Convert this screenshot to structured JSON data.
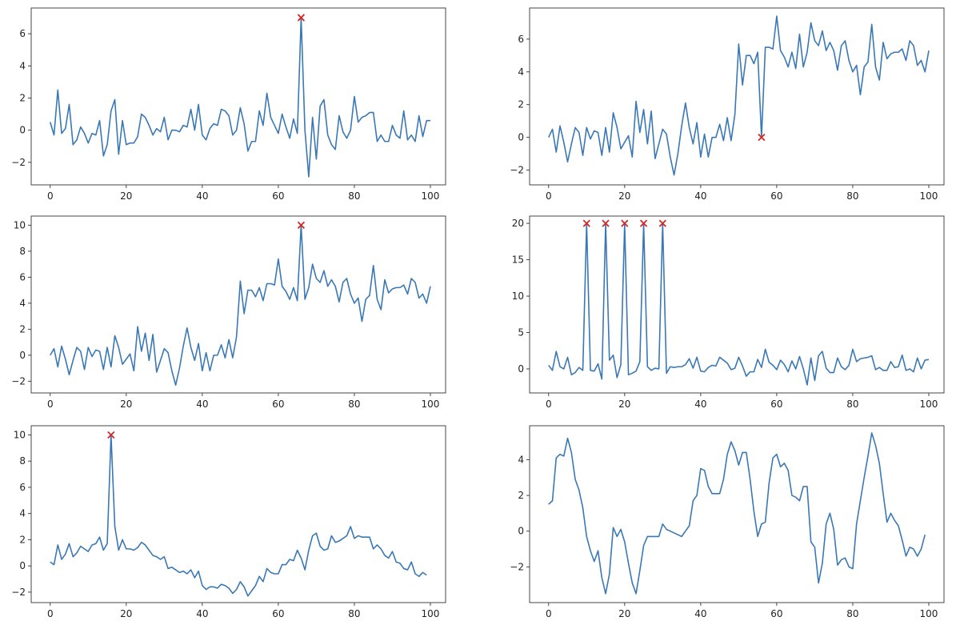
{
  "figure": {
    "line_color": "#3a78b5",
    "marker_color": "#d62728",
    "marker_symbol": "x",
    "layout": "3x2 grid"
  },
  "chart_data": [
    {
      "type": "line",
      "xlim": [
        -5,
        104
      ],
      "ylim": [
        -3.4,
        7.6
      ],
      "xticks": [
        0,
        20,
        40,
        60,
        80,
        100
      ],
      "yticks": [
        -2,
        0,
        2,
        4,
        6
      ],
      "series": [
        {
          "y": [
            0.5,
            -0.3,
            2.5,
            -0.2,
            0.1,
            1.6,
            -0.9,
            -0.6,
            0.2,
            -0.2,
            -0.8,
            -0.2,
            -0.3,
            0.6,
            -1.6,
            -0.9,
            1.2,
            1.9,
            -1.5,
            0.6,
            -0.9,
            -0.8,
            -0.8,
            -0.4,
            1.0,
            0.8,
            0.3,
            -0.3,
            0.1,
            -0.1,
            0.8,
            -0.6,
            0.0,
            0.0,
            -0.1,
            0.3,
            0.2,
            1.3,
            0.0,
            1.6,
            -0.3,
            -0.6,
            0.1,
            0.4,
            0.3,
            1.3,
            1.2,
            0.9,
            -0.3,
            0.0,
            1.4,
            0.4,
            -1.3,
            -0.7,
            -0.7,
            1.2,
            0.3,
            2.3,
            0.8,
            0.3,
            -0.2,
            1.0,
            0.2,
            -0.5,
            0.7,
            -0.2,
            7.0,
            0.0,
            -2.9,
            0.8,
            -1.8,
            1.5,
            1.9,
            -0.3,
            -0.9,
            -1.2,
            0.9,
            -0.1,
            -0.5,
            0.0,
            2.1,
            0.5,
            0.8,
            0.9,
            1.1,
            1.1,
            -0.7,
            -0.3,
            -0.7,
            -0.7,
            0.3,
            -0.3,
            -0.5,
            1.2,
            -0.6,
            -0.3,
            -0.7,
            0.9,
            -0.4,
            0.6,
            0.6
          ]
        }
      ],
      "markers": [
        {
          "x": 66,
          "y": 7.0
        }
      ]
    },
    {
      "type": "line",
      "xlim": [
        -5,
        104
      ],
      "ylim": [
        -2.9,
        7.9
      ],
      "xticks": [
        0,
        20,
        40,
        60,
        80,
        100
      ],
      "yticks": [
        -2,
        0,
        2,
        4,
        6
      ],
      "series": [
        {
          "y": [
            0.0,
            0.5,
            -0.9,
            0.7,
            -0.3,
            -1.5,
            -0.4,
            0.6,
            0.3,
            -1.1,
            0.6,
            -0.1,
            0.4,
            0.3,
            -1.1,
            0.6,
            -0.9,
            1.5,
            0.6,
            -0.7,
            -0.3,
            0.1,
            -1.2,
            2.2,
            0.3,
            1.7,
            -0.4,
            1.6,
            -1.3,
            -0.4,
            0.5,
            0.2,
            -1.2,
            -2.3,
            -1.0,
            0.7,
            2.1,
            0.6,
            -0.4,
            0.9,
            -1.2,
            0.2,
            -1.2,
            0.0,
            0.0,
            0.8,
            -0.2,
            1.2,
            -0.2,
            1.4,
            5.7,
            3.2,
            5.0,
            5.0,
            4.5,
            5.2,
            0.0,
            5.5,
            5.5,
            5.4,
            7.4,
            5.3,
            4.9,
            4.3,
            5.2,
            4.2,
            6.3,
            4.3,
            5.2,
            7.0,
            5.9,
            5.6,
            6.5,
            5.3,
            5.8,
            5.3,
            4.1,
            5.6,
            5.9,
            4.7,
            4.0,
            4.4,
            2.6,
            4.3,
            4.6,
            6.9,
            4.3,
            3.5,
            5.8,
            4.8,
            5.1,
            5.2,
            5.2,
            5.4,
            4.7,
            5.9,
            5.6,
            4.4,
            4.7,
            4.0,
            5.3
          ]
        }
      ],
      "markers": [
        {
          "x": 56,
          "y": 0.0
        }
      ]
    },
    {
      "type": "line",
      "xlim": [
        -5,
        104
      ],
      "ylim": [
        -2.9,
        10.7
      ],
      "xticks": [
        0,
        20,
        40,
        60,
        80,
        100
      ],
      "yticks": [
        -2,
        0,
        2,
        4,
        6,
        8,
        10
      ],
      "series": [
        {
          "y": [
            0.0,
            0.5,
            -0.9,
            0.7,
            -0.3,
            -1.5,
            -0.4,
            0.6,
            0.3,
            -1.1,
            0.6,
            -0.1,
            0.4,
            0.3,
            -1.1,
            0.6,
            -0.9,
            1.5,
            0.6,
            -0.7,
            -0.3,
            0.1,
            -1.2,
            2.2,
            0.3,
            1.7,
            -0.4,
            1.6,
            -1.3,
            -0.4,
            0.5,
            0.2,
            -1.2,
            -2.3,
            -1.0,
            0.7,
            2.1,
            0.6,
            -0.4,
            0.9,
            -1.2,
            0.2,
            -1.2,
            0.0,
            0.0,
            0.8,
            -0.2,
            1.2,
            -0.2,
            1.4,
            5.7,
            3.2,
            5.0,
            5.0,
            4.5,
            5.2,
            4.2,
            5.5,
            5.5,
            5.4,
            7.4,
            5.3,
            4.9,
            4.3,
            5.2,
            4.2,
            10.0,
            4.3,
            5.2,
            7.0,
            5.9,
            5.6,
            6.5,
            5.3,
            5.8,
            5.3,
            4.1,
            5.6,
            5.9,
            4.7,
            4.0,
            4.4,
            2.6,
            4.3,
            4.6,
            6.9,
            4.3,
            3.5,
            5.8,
            4.8,
            5.1,
            5.2,
            5.2,
            5.4,
            4.7,
            5.9,
            5.6,
            4.4,
            4.7,
            4.0,
            5.3
          ]
        }
      ],
      "markers": [
        {
          "x": 66,
          "y": 10.0
        }
      ]
    },
    {
      "type": "line",
      "xlim": [
        -5,
        104
      ],
      "ylim": [
        -3.3,
        21.0
      ],
      "xticks": [
        0,
        20,
        40,
        60,
        80,
        100
      ],
      "yticks": [
        0,
        5,
        10,
        15,
        20
      ],
      "series": [
        {
          "y": [
            0.5,
            -0.2,
            2.4,
            0.3,
            0.0,
            1.6,
            -0.8,
            -0.5,
            0.2,
            -0.2,
            20.0,
            -0.2,
            -0.3,
            0.7,
            -1.4,
            20.0,
            1.2,
            1.9,
            -1.2,
            0.6,
            20.0,
            -0.8,
            -0.6,
            -0.3,
            1.0,
            20.0,
            0.3,
            -0.2,
            0.1,
            0.0,
            20.0,
            -0.6,
            0.3,
            0.2,
            0.3,
            0.3,
            0.6,
            1.4,
            0.1,
            1.6,
            -0.3,
            -0.4,
            0.2,
            0.5,
            0.4,
            1.6,
            1.2,
            0.8,
            -0.1,
            0.1,
            1.6,
            0.4,
            -1.0,
            -0.4,
            -0.4,
            1.3,
            0.2,
            2.7,
            0.9,
            0.5,
            -0.1,
            1.2,
            0.6,
            -0.4,
            1.1,
            0.0,
            1.7,
            0.0,
            -2.2,
            1.5,
            -1.6,
            1.8,
            2.4,
            0.1,
            -0.5,
            -0.5,
            1.5,
            0.3,
            -0.1,
            0.5,
            2.7,
            1.0,
            1.4,
            1.5,
            1.6,
            1.8,
            -0.1,
            0.2,
            -0.2,
            -0.2,
            1.0,
            0.2,
            0.3,
            1.9,
            -0.2,
            0.0,
            -0.4,
            1.5,
            0.0,
            1.2,
            1.3
          ]
        }
      ],
      "markers": [
        {
          "x": 10,
          "y": 20.0
        },
        {
          "x": 15,
          "y": 20.0
        },
        {
          "x": 20,
          "y": 20.0
        },
        {
          "x": 25,
          "y": 20.0
        },
        {
          "x": 30,
          "y": 20.0
        }
      ]
    },
    {
      "type": "line",
      "xlim": [
        -5,
        104
      ],
      "ylim": [
        -2.8,
        10.7
      ],
      "xticks": [
        0,
        20,
        40,
        60,
        80,
        100
      ],
      "yticks": [
        -2,
        0,
        2,
        4,
        6,
        8,
        10
      ],
      "series": [
        {
          "y": [
            0.3,
            0.1,
            1.6,
            0.5,
            0.9,
            1.7,
            0.7,
            1.0,
            1.5,
            1.3,
            1.1,
            1.6,
            1.7,
            2.2,
            1.2,
            1.7,
            10.0,
            3.0,
            1.2,
            2.0,
            1.3,
            1.3,
            1.2,
            1.4,
            1.8,
            1.6,
            1.2,
            0.8,
            0.7,
            0.5,
            0.7,
            -0.2,
            -0.1,
            -0.3,
            -0.5,
            -0.4,
            -0.6,
            -0.3,
            -0.9,
            -0.4,
            -1.5,
            -1.8,
            -1.6,
            -1.6,
            -1.7,
            -1.4,
            -1.5,
            -1.7,
            -2.1,
            -1.8,
            -1.2,
            -1.6,
            -2.3,
            -1.9,
            -1.5,
            -0.8,
            -1.2,
            -0.2,
            -0.5,
            -0.6,
            -0.6,
            0.1,
            0.1,
            0.5,
            0.4,
            1.2,
            0.6,
            -0.3,
            1.2,
            2.3,
            2.5,
            1.5,
            1.2,
            1.3,
            2.3,
            1.8,
            1.9,
            2.1,
            2.3,
            3.0,
            2.1,
            2.3,
            2.2,
            2.2,
            2.2,
            1.3,
            1.6,
            1.3,
            0.8,
            0.6,
            1.1,
            0.3,
            0.2,
            -0.2,
            -0.3,
            0.3,
            -0.6,
            -0.8,
            -0.5,
            -0.7
          ]
        }
      ],
      "markers": [
        {
          "x": 16,
          "y": 10.0
        }
      ]
    },
    {
      "type": "line",
      "xlim": [
        -5,
        104
      ],
      "ylim": [
        -4.0,
        5.9
      ],
      "xticks": [
        0,
        20,
        40,
        60,
        80,
        100
      ],
      "yticks": [
        -2,
        0,
        2,
        4
      ],
      "series": [
        {
          "y": [
            1.5,
            1.7,
            4.1,
            4.3,
            4.2,
            5.2,
            4.4,
            2.9,
            2.3,
            1.3,
            -0.3,
            -1.1,
            -1.7,
            -1.1,
            -2.6,
            -3.5,
            -2.4,
            0.2,
            -0.3,
            0.1,
            -0.6,
            -1.8,
            -2.9,
            -3.5,
            -2.2,
            -0.8,
            -0.3,
            -0.3,
            -0.3,
            -0.3,
            0.4,
            0.1,
            0.0,
            -0.1,
            -0.2,
            -0.3,
            0.0,
            0.3,
            1.7,
            2.0,
            3.5,
            3.4,
            2.5,
            2.1,
            2.1,
            2.1,
            2.9,
            4.3,
            5.0,
            4.5,
            3.7,
            4.4,
            4.4,
            2.9,
            1.1,
            -0.3,
            0.4,
            0.5,
            2.7,
            4.1,
            4.3,
            3.6,
            3.8,
            3.4,
            2.0,
            1.9,
            1.7,
            2.5,
            2.5,
            -0.6,
            -0.9,
            -2.9,
            -1.8,
            0.4,
            1.0,
            0.1,
            -1.9,
            -1.6,
            -1.5,
            -2.0,
            -2.1,
            0.4,
            1.7,
            3.0,
            4.2,
            5.5,
            4.8,
            3.8,
            2.1,
            0.5,
            1.0,
            0.6,
            0.3,
            -0.5,
            -1.4,
            -0.9,
            -1.0,
            -1.4,
            -1.0,
            -0.2
          ]
        }
      ],
      "markers": []
    }
  ]
}
